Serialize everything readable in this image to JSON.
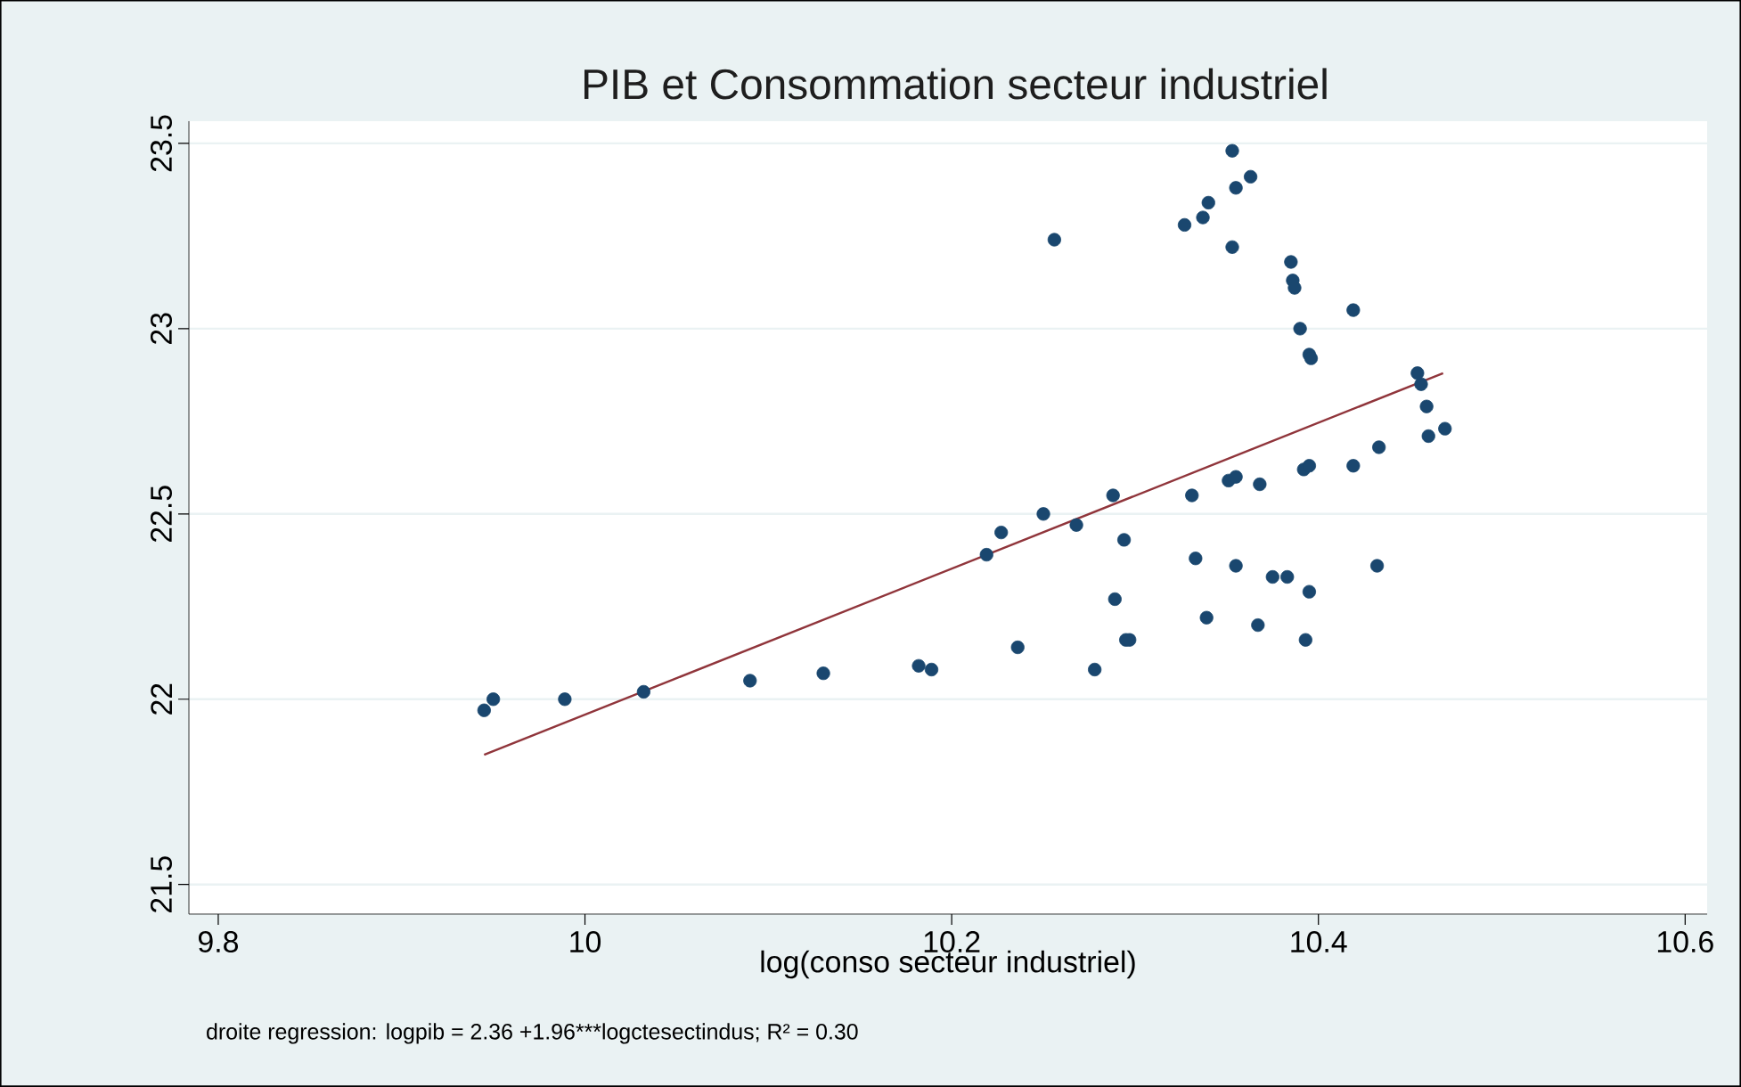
{
  "chart_data": {
    "type": "scatter",
    "title": "PIB et Consommation secteur industriel",
    "xlabel": "log(conso secteur industriel)",
    "annotations": [
      "droite regression: logpib = 2.36 +1.96***logctesectindus;  R² = 0.30"
    ],
    "xlim": [
      9.784,
      10.612
    ],
    "ylim": [
      21.42,
      23.56
    ],
    "xticks": [
      9.8,
      10,
      10.2,
      10.4,
      10.6
    ],
    "yticks": [
      21.5,
      22,
      22.5,
      23,
      23.5
    ],
    "grid": "y",
    "marker": "circle",
    "series": [
      {
        "type": "scatter",
        "color": "#1a476f",
        "x": [
          9.945,
          9.95,
          9.989,
          10.032,
          10.09,
          10.13,
          10.182,
          10.189,
          10.236,
          10.278,
          10.219,
          10.227,
          10.25,
          10.268,
          10.288,
          10.294,
          10.289,
          10.295,
          10.297,
          10.331,
          10.333,
          10.339,
          10.351,
          10.355,
          10.355,
          10.368,
          10.367,
          10.375,
          10.383,
          10.392,
          10.395,
          10.395,
          10.393,
          10.419,
          10.433,
          10.432,
          10.46,
          10.469,
          10.459,
          10.456,
          10.454,
          10.256,
          10.327,
          10.337,
          10.34,
          10.353,
          10.363,
          10.355,
          10.353,
          10.385,
          10.386,
          10.387,
          10.39,
          10.395,
          10.396,
          10.419
        ],
        "values": [
          21.97,
          22.0,
          22.0,
          22.02,
          22.05,
          22.07,
          22.09,
          22.08,
          22.14,
          22.08,
          22.39,
          22.45,
          22.5,
          22.47,
          22.55,
          22.43,
          22.27,
          22.16,
          22.16,
          22.55,
          22.38,
          22.22,
          22.59,
          22.6,
          22.36,
          22.58,
          22.2,
          22.33,
          22.33,
          22.62,
          22.63,
          22.29,
          22.16,
          22.63,
          22.68,
          22.36,
          22.71,
          22.73,
          22.79,
          22.85,
          22.88,
          23.24,
          23.28,
          23.3,
          23.34,
          23.48,
          23.41,
          23.38,
          23.22,
          23.18,
          23.13,
          23.11,
          23.0,
          22.93,
          22.92,
          23.05
        ]
      },
      {
        "type": "line",
        "color": "#90353b",
        "marker": "none",
        "x": [
          9.945,
          10.468
        ],
        "values": [
          21.85,
          22.88
        ]
      }
    ]
  }
}
